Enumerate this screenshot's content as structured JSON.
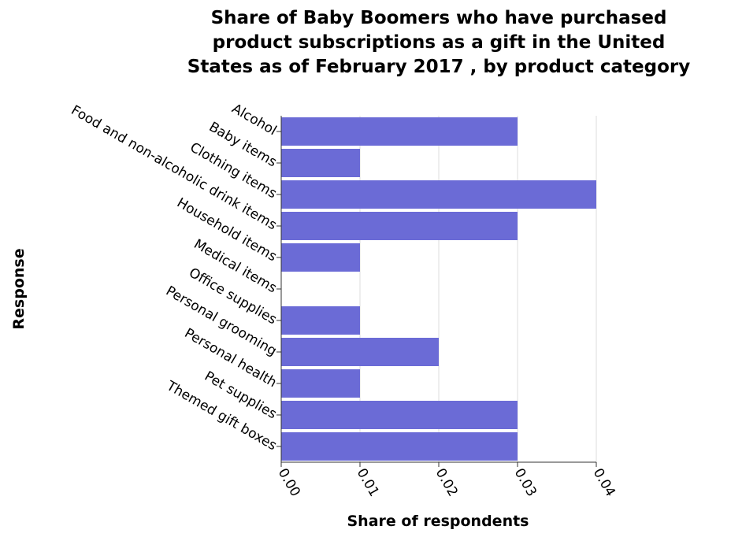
{
  "chart_data": {
    "type": "bar",
    "orientation": "horizontal",
    "title": "Share of Baby Boomers who have purchased product subscriptions as a gift in the United States as of February 2017 , by product category",
    "title_lines": [
      "Share of Baby Boomers who have purchased",
      "product subscriptions as a gift in the United",
      "States as of February 2017 , by product category"
    ],
    "xlabel": "Share of respondents",
    "ylabel": "Response",
    "categories": [
      "Alcohol",
      "Baby items",
      "Clothing items",
      "Food and non-alcoholic drink items",
      "Household items",
      "Medical items",
      "Office supplies",
      "Personal grooming",
      "Personal health",
      "Pet supplies",
      "Themed gift boxes"
    ],
    "values": [
      0.03,
      0.01,
      0.04,
      0.03,
      0.01,
      0,
      0.01,
      0.02,
      0.01,
      0.03,
      0.03
    ],
    "xlim": [
      0,
      0.04
    ],
    "x_ticks": [
      0,
      0.01,
      0.02,
      0.03,
      0.04
    ],
    "x_tick_labels": [
      "0.00",
      "0.01",
      "0.02",
      "0.03",
      "0.04"
    ],
    "grid": "vertical",
    "legend": "none",
    "colors": {
      "bar": "#6b6bd6",
      "grid": "#dddddd",
      "axis": "#333333"
    }
  }
}
